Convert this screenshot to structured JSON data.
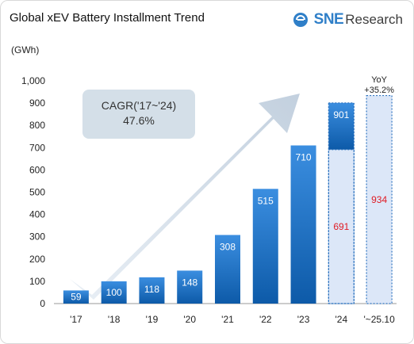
{
  "header": {
    "title": "Global xEV Battery Installment Trend",
    "unit": "(GWh)",
    "logo_sne": "SNE",
    "logo_research": "Research"
  },
  "annotations": {
    "cagr_line1": "CAGR('17~'24)",
    "cagr_line2": "47.6%",
    "yoy_line1": "YoY",
    "yoy_line2": "+35.2%"
  },
  "colors": {
    "bar_top": "#3b8ee0",
    "bar_bottom": "#0d5aa8",
    "highlight_fill": "#dce7f8",
    "highlight_border": "#2f74c0",
    "red_label": "#e01b24",
    "arrow": "#c7d5e3",
    "cagr_box": "#cfdbe5"
  },
  "chart_data": {
    "type": "bar",
    "title": "Global xEV Battery Installment Trend",
    "ylabel": "(GWh)",
    "ylim": [
      0,
      1000
    ],
    "yticks": [
      0,
      100,
      200,
      300,
      400,
      500,
      600,
      700,
      800,
      900,
      1000
    ],
    "ytick_labels": [
      "0",
      "100",
      "200",
      "300",
      "400",
      "500",
      "600",
      "700",
      "800",
      "900",
      "1,000"
    ],
    "grid": false,
    "categories": [
      "'17",
      "'18",
      "'19",
      "'20",
      "'21",
      "'22",
      "'23",
      "'24",
      "'~25.10"
    ],
    "values": [
      59,
      100,
      118,
      148,
      308,
      515,
      710,
      901,
      null
    ],
    "partial_values": [
      null,
      null,
      null,
      null,
      null,
      null,
      null,
      691,
      934
    ],
    "value_labels": [
      "59",
      "100",
      "118",
      "148",
      "308",
      "515",
      "710",
      "901",
      ""
    ],
    "partial_labels": [
      "",
      "",
      "",
      "",
      "",
      "",
      "",
      "691",
      "934"
    ]
  }
}
